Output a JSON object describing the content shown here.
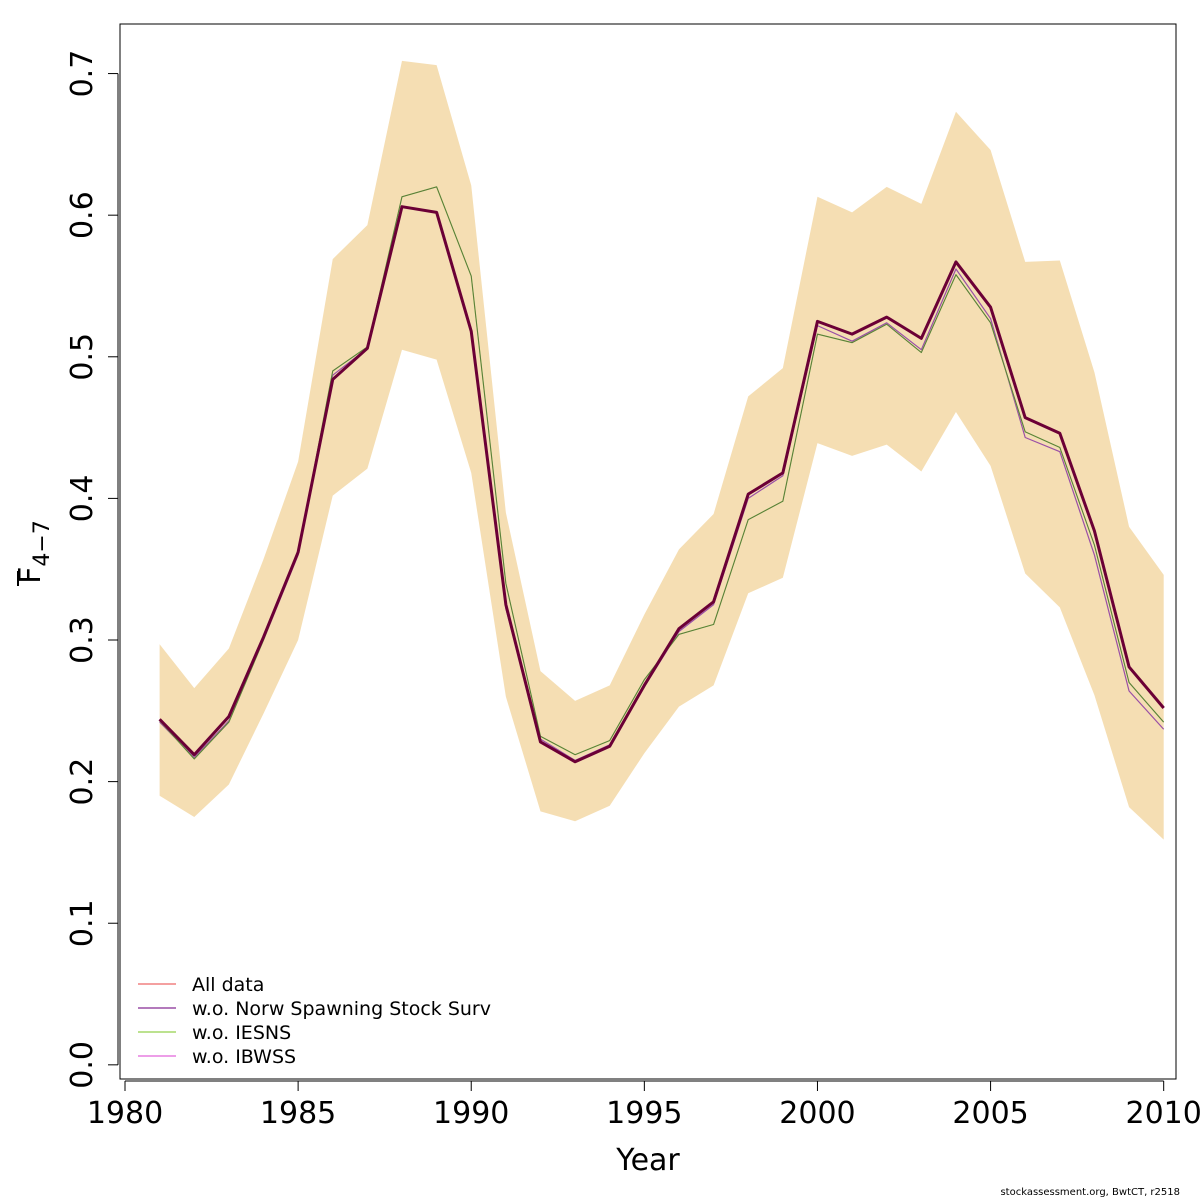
{
  "chart_data": {
    "type": "line",
    "title": "",
    "xlabel": "Year",
    "ylabel": {
      "main": "F",
      "subscript": "4−7"
    },
    "xlim": [
      1980,
      2010.5
    ],
    "ylim": [
      -0.01,
      0.735
    ],
    "xticks": [
      1980,
      1985,
      1990,
      1995,
      2000,
      2005,
      2010
    ],
    "yticks": [
      0.0,
      0.1,
      0.2,
      0.3,
      0.4,
      0.5,
      0.6,
      0.7
    ],
    "ytick_labels": [
      "0.0",
      "0.1",
      "0.2",
      "0.3",
      "0.4",
      "0.5",
      "0.6",
      "0.7"
    ],
    "grid": false,
    "legend_position": "bottom-left",
    "x": [
      1981,
      1982,
      1983,
      1984,
      1985,
      1986,
      1987,
      1988,
      1989,
      1990,
      1991,
      1992,
      1993,
      1994,
      1995,
      1996,
      1997,
      1998,
      1999,
      2000,
      2001,
      2002,
      2003,
      2004,
      2005,
      2006,
      2007,
      2008,
      2009,
      2010
    ],
    "confidence_band": {
      "color": "#f5deb3",
      "upper": [
        0.297,
        0.266,
        0.294,
        0.357,
        0.426,
        0.569,
        0.593,
        0.709,
        0.706,
        0.621,
        0.39,
        0.278,
        0.257,
        0.268,
        0.318,
        0.364,
        0.389,
        0.472,
        0.492,
        0.613,
        0.602,
        0.62,
        0.608,
        0.673,
        0.646,
        0.567,
        0.568,
        0.489,
        0.38,
        0.346
      ],
      "lower": [
        0.19,
        0.175,
        0.198,
        0.248,
        0.3,
        0.402,
        0.421,
        0.505,
        0.498,
        0.418,
        0.26,
        0.179,
        0.172,
        0.183,
        0.22,
        0.253,
        0.268,
        0.333,
        0.344,
        0.439,
        0.43,
        0.438,
        0.419,
        0.461,
        0.423,
        0.347,
        0.323,
        0.261,
        0.182,
        0.159
      ]
    },
    "series": [
      {
        "name": "All data",
        "color": "#f08080",
        "legend": true,
        "values": [
          0.244,
          0.219,
          0.246,
          0.302,
          0.362,
          0.484,
          0.506,
          0.606,
          0.602,
          0.518,
          0.325,
          0.228,
          0.214,
          0.225,
          0.268,
          0.308,
          0.327,
          0.403,
          0.418,
          0.525,
          0.516,
          0.528,
          0.513,
          0.567,
          0.535,
          0.457,
          0.446,
          0.377,
          0.281,
          0.252
        ]
      },
      {
        "name": "w.o. Norw Spawning Stock Surv",
        "color": "#9a4fa6",
        "legend": true,
        "values": [
          0.242,
          0.217,
          0.243,
          0.3,
          0.36,
          0.487,
          0.506,
          0.606,
          0.602,
          0.518,
          0.322,
          0.23,
          0.215,
          0.226,
          0.267,
          0.306,
          0.325,
          0.4,
          0.416,
          0.522,
          0.511,
          0.524,
          0.505,
          0.562,
          0.527,
          0.443,
          0.433,
          0.36,
          0.264,
          0.237
        ]
      },
      {
        "name": "w.o. IESNS",
        "color": "#a6d96a",
        "legend": true,
        "values": [
          0.243,
          0.216,
          0.242,
          0.3,
          0.362,
          0.49,
          0.507,
          0.613,
          0.62,
          0.557,
          0.34,
          0.232,
          0.219,
          0.229,
          0.272,
          0.304,
          0.311,
          0.385,
          0.398,
          0.516,
          0.51,
          0.523,
          0.503,
          0.558,
          0.524,
          0.447,
          0.436,
          0.367,
          0.27,
          0.242
        ]
      },
      {
        "name": "w.o. IBWSS",
        "color": "#e77fe0",
        "legend": true,
        "values": [
          0.244,
          0.219,
          0.246,
          0.302,
          0.362,
          0.484,
          0.506,
          0.606,
          0.602,
          0.518,
          0.325,
          0.228,
          0.214,
          0.225,
          0.268,
          0.308,
          0.327,
          0.403,
          0.418,
          0.525,
          0.516,
          0.528,
          0.513,
          0.567,
          0.535,
          0.457,
          0.446,
          0.377,
          0.281,
          0.252
        ]
      },
      {
        "name": "",
        "color": "#5a7a3a",
        "legend": false,
        "width": 1,
        "values": [
          0.243,
          0.216,
          0.242,
          0.3,
          0.362,
          0.49,
          0.507,
          0.613,
          0.62,
          0.557,
          0.34,
          0.232,
          0.219,
          0.229,
          0.272,
          0.304,
          0.311,
          0.385,
          0.398,
          0.516,
          0.51,
          0.523,
          0.503,
          0.558,
          0.524,
          0.447,
          0.436,
          0.367,
          0.27,
          0.242
        ]
      },
      {
        "name": "",
        "color": "#6b0036",
        "legend": false,
        "width": 3,
        "values": [
          0.244,
          0.219,
          0.246,
          0.302,
          0.362,
          0.484,
          0.506,
          0.606,
          0.602,
          0.518,
          0.325,
          0.228,
          0.214,
          0.225,
          0.268,
          0.308,
          0.327,
          0.403,
          0.418,
          0.525,
          0.516,
          0.528,
          0.513,
          0.567,
          0.535,
          0.457,
          0.446,
          0.377,
          0.281,
          0.252
        ]
      }
    ]
  },
  "credit": "stockassessment.org, BwtCT, r2518"
}
